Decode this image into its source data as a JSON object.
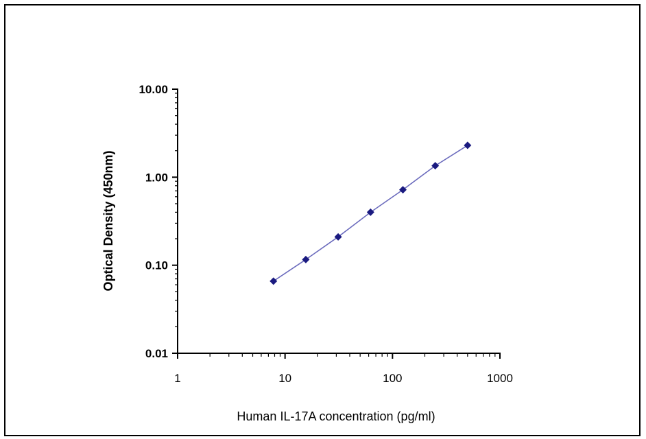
{
  "chart_data": {
    "type": "line",
    "title": "",
    "xlabel": "Human IL-17A concentration (pg/ml)",
    "ylabel": "Optical Density (450nm)",
    "x_scale": "log",
    "y_scale": "log",
    "xlim": [
      1,
      1000
    ],
    "ylim": [
      0.01,
      10
    ],
    "x_ticks": [
      "1",
      "10",
      "100",
      "1000"
    ],
    "y_ticks": [
      "0.01",
      "0.10",
      "1.00",
      "10.00"
    ],
    "grid": false,
    "legend": "none",
    "series": [
      {
        "x": [
          7.8,
          15.6,
          31.2,
          62.5,
          125,
          250,
          500
        ],
        "y": [
          0.066,
          0.116,
          0.21,
          0.4,
          0.72,
          1.35,
          2.3
        ],
        "line_color": "#6b6bbd",
        "marker_color": "#1a1a80",
        "marker": "diamond"
      }
    ]
  }
}
